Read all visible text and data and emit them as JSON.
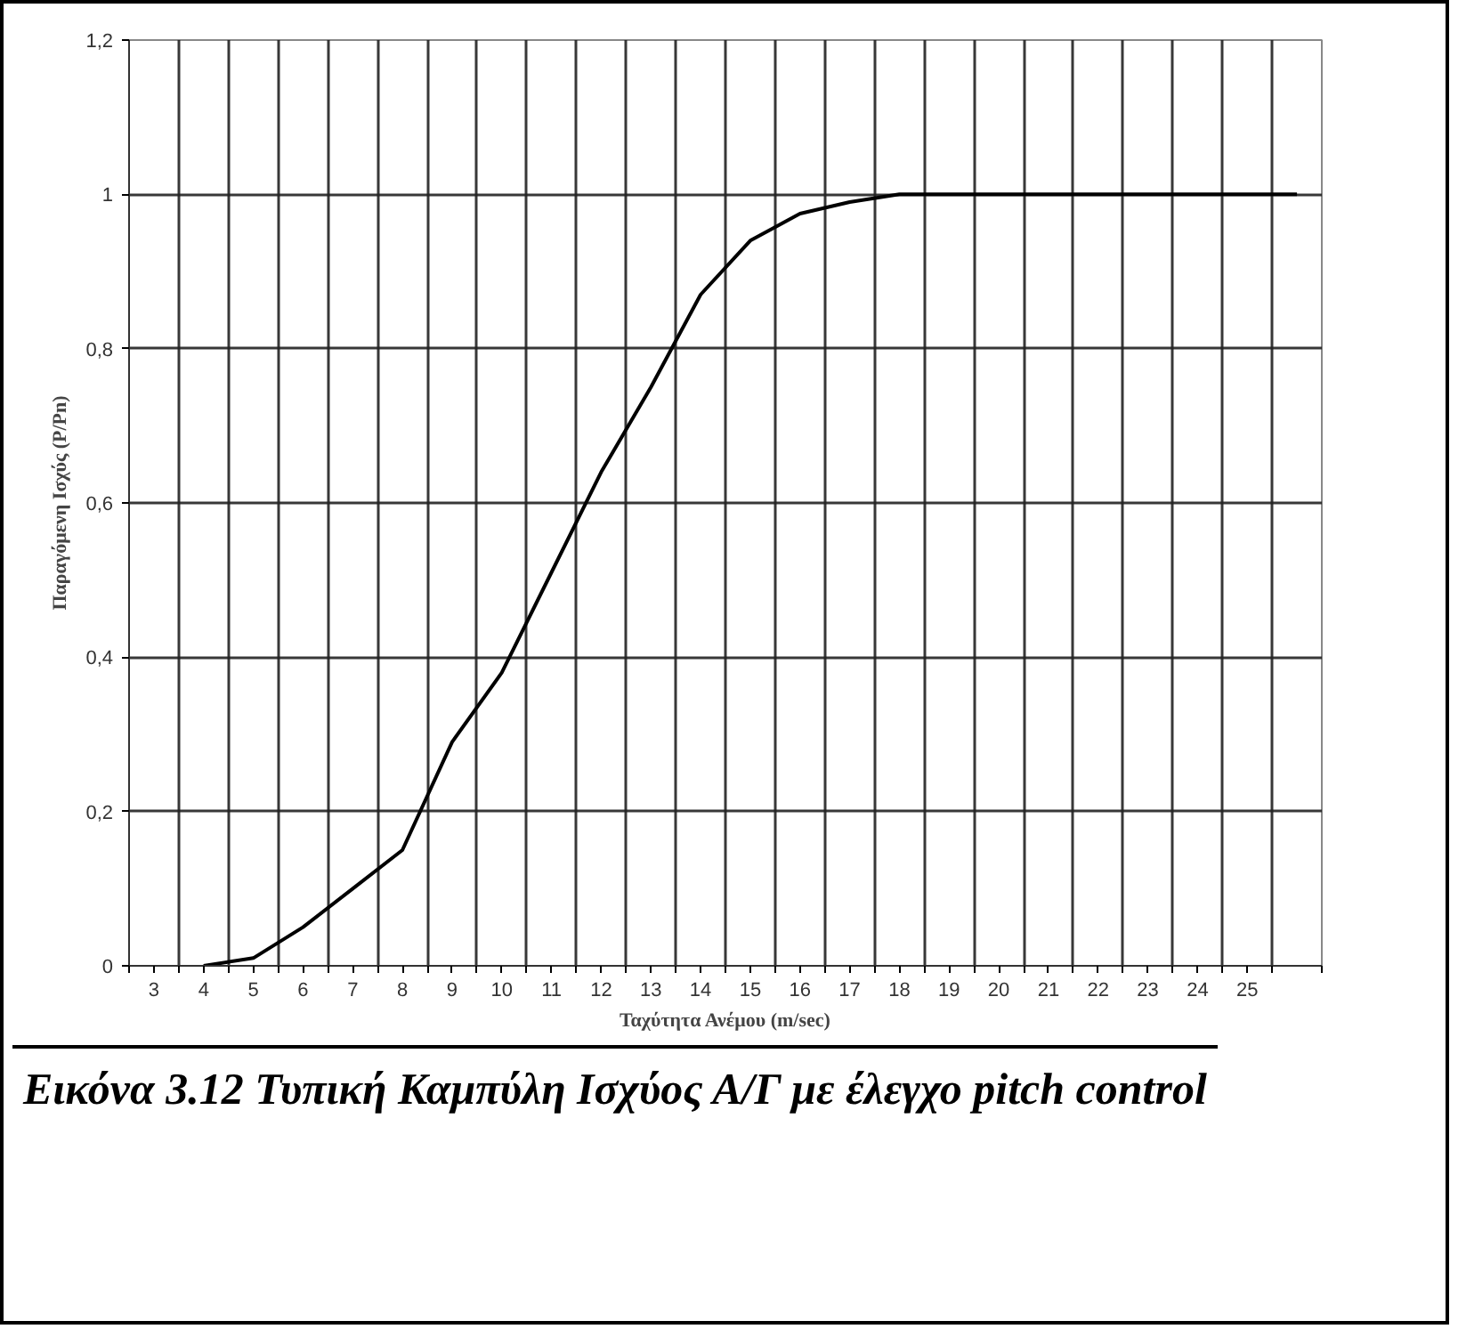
{
  "chart_data": {
    "type": "line",
    "xlabel": "Ταχύτητα Ανέμου (m/sec)",
    "ylabel": "Παραγόμενη Ισχύς (P/Pn)",
    "annotations": [
      "Εικόνα 3.12 Τυπική  Καμπύλη Ισχύος Α/Γ με έλεγχο pitch control"
    ],
    "x": [
      4,
      5,
      6,
      7,
      8,
      9,
      10,
      11,
      12,
      13,
      14,
      15,
      16,
      17,
      18,
      19,
      20,
      21,
      22,
      23,
      24,
      25,
      26
    ],
    "series": [
      {
        "color": "#000000",
        "values": [
          0,
          0.01,
          0.05,
          0.1,
          0.15,
          0.29,
          0.38,
          0.51,
          0.64,
          0.75,
          0.87,
          0.94,
          0.975,
          0.99,
          1,
          1,
          1,
          1,
          1,
          1,
          1,
          1,
          1
        ]
      }
    ],
    "xlim": [
      2.5,
      26.5
    ],
    "xticks": [
      {
        "value": 2.5,
        "label": null
      },
      {
        "value": 3.5,
        "label": null
      },
      {
        "value": 4.5,
        "label": null
      },
      {
        "value": 5.5,
        "label": null
      },
      {
        "value": 6.5,
        "label": null
      },
      {
        "value": 7.5,
        "label": null
      },
      {
        "value": 8.5,
        "label": null
      },
      {
        "value": 9.5,
        "label": null
      },
      {
        "value": 10.5,
        "label": null
      },
      {
        "value": 11.5,
        "label": null
      },
      {
        "value": 12.5,
        "label": null
      },
      {
        "value": 13.5,
        "label": null
      },
      {
        "value": 14.5,
        "label": null
      },
      {
        "value": 15.5,
        "label": null
      },
      {
        "value": 16.5,
        "label": null
      },
      {
        "value": 17.5,
        "label": null
      },
      {
        "value": 18.5,
        "label": null
      },
      {
        "value": 19.5,
        "label": null
      },
      {
        "value": 20.5,
        "label": null
      },
      {
        "value": 21.5,
        "label": null
      },
      {
        "value": 22.5,
        "label": null
      },
      {
        "value": 23.5,
        "label": null
      },
      {
        "value": 24.5,
        "label": null
      },
      {
        "value": 25.5,
        "label": null
      },
      {
        "value": 26.5,
        "label": null
      },
      3,
      4,
      5,
      6,
      7,
      8,
      9,
      10,
      11,
      12,
      13,
      14,
      15,
      16,
      17,
      18,
      19,
      20,
      21,
      22,
      23,
      24,
      25
    ],
    "ylim": [
      0,
      1.2
    ],
    "yticks": [
      0,
      {
        "value": 0.2,
        "label": "0,2"
      },
      {
        "value": 0.4,
        "label": "0,4"
      },
      {
        "value": 0.6,
        "label": "0,6"
      },
      {
        "value": 0.8,
        "label": "0,8"
      },
      1,
      {
        "value": 1.2,
        "label": "1,2"
      }
    ],
    "grid": true,
    "marker": "none",
    "line_style": "solid"
  }
}
